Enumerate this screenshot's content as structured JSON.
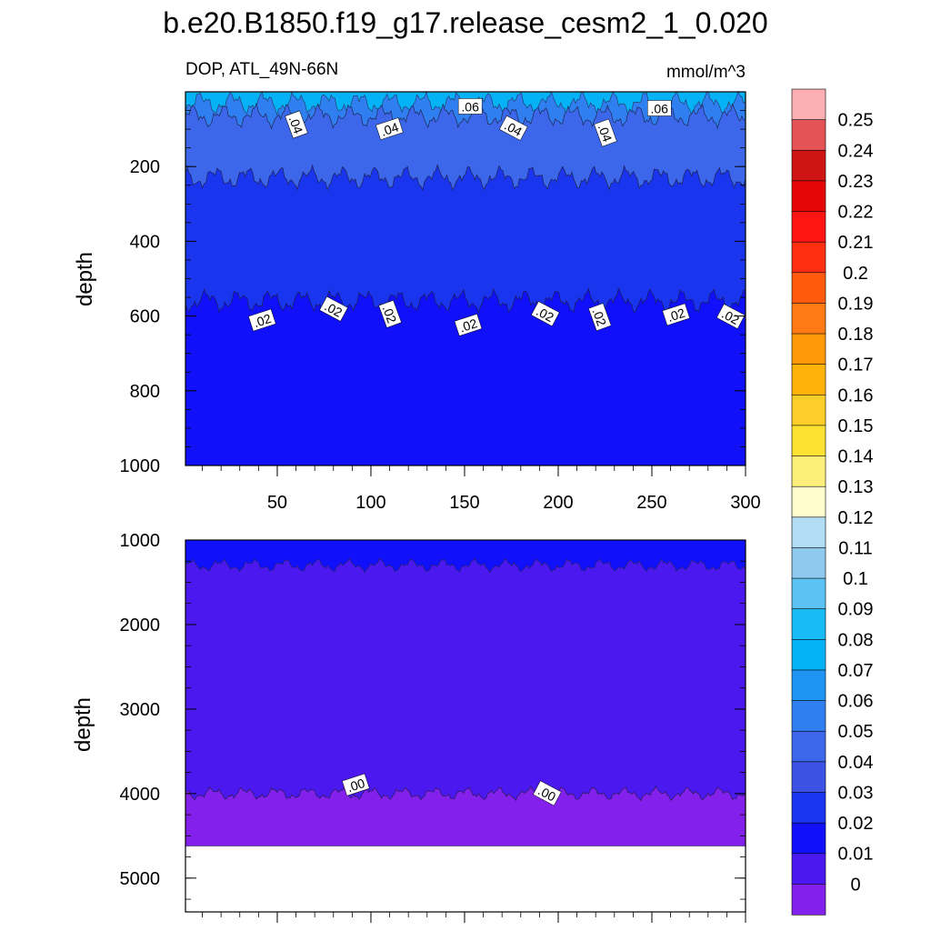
{
  "chart_data": {
    "type": "heatmap",
    "title": "b.e20.B1850.f19_g17.release_cesm2_1_0.020",
    "left_subtitle": "DOP, ATL_49N-66N",
    "right_subtitle": "mmol/m^3",
    "xlabel": "",
    "x_ticks": [
      50,
      100,
      150,
      200,
      250,
      300
    ],
    "xlim": [
      1,
      300
    ],
    "panels": [
      {
        "ylabel": "depth",
        "ylim": [
          0,
          1000
        ],
        "y_ticks": [
          200,
          400,
          600,
          800,
          1000
        ],
        "y_reversed": true,
        "bands": [
          {
            "level_below": 0.06,
            "depth_top": 0,
            "depth_bottom": 30,
            "color": "#05b2f5"
          },
          {
            "level_below": 0.05,
            "depth_top": 30,
            "depth_bottom": 65,
            "color": "#2f7ff1"
          },
          {
            "level_below": 0.04,
            "depth_top": 65,
            "depth_bottom": 230,
            "color": "#3c67ea"
          },
          {
            "level_below": 0.03,
            "depth_top": 230,
            "depth_bottom": 560,
            "color": "#1a35ee"
          },
          {
            "level_below": 0.02,
            "depth_top": 560,
            "depth_bottom": 1000,
            "color": "#1010fa"
          }
        ],
        "contour_labels": [
          {
            "text": ".06",
            "x": 153,
            "depth": 40
          },
          {
            "text": ".06",
            "x": 254,
            "depth": 45
          },
          {
            "text": ".04",
            "x": 60,
            "depth": 88
          },
          {
            "text": ".04",
            "x": 110,
            "depth": 100
          },
          {
            "text": ".04",
            "x": 176,
            "depth": 98
          },
          {
            "text": ".04",
            "x": 225,
            "depth": 110
          },
          {
            "text": ".02",
            "x": 42,
            "depth": 612
          },
          {
            "text": ".02",
            "x": 80,
            "depth": 582
          },
          {
            "text": ".02",
            "x": 110,
            "depth": 595
          },
          {
            "text": ".02",
            "x": 152,
            "depth": 625
          },
          {
            "text": ".02",
            "x": 193,
            "depth": 595
          },
          {
            "text": ".02",
            "x": 222,
            "depth": 603
          },
          {
            "text": ".02",
            "x": 263,
            "depth": 597
          },
          {
            "text": ".02",
            "x": 292,
            "depth": 602
          }
        ]
      },
      {
        "ylabel": "depth",
        "ylim": [
          1000,
          5400
        ],
        "y_ticks": [
          1000,
          2000,
          3000,
          4000,
          5000
        ],
        "y_reversed": true,
        "seafloor_depth": 4620,
        "bands": [
          {
            "level_below": 0.01,
            "depth_top": 1000,
            "depth_bottom": 1300,
            "color": "#1010fa"
          },
          {
            "level_below": 0.0,
            "depth_top": 1300,
            "depth_bottom": 4000,
            "color": "#4b19f0"
          },
          {
            "level_below": -0.01,
            "depth_top": 4000,
            "depth_bottom": 4620,
            "color": "#8420ec"
          }
        ],
        "contour_labels": [
          {
            "text": ".00",
            "x": 92,
            "depth": 3900
          },
          {
            "text": ".00",
            "x": 194,
            "depth": 4000
          }
        ]
      }
    ],
    "colorbar": {
      "labels": [
        "0.25",
        "0.24",
        "0.23",
        "0.22",
        "0.21",
        "0.2",
        "0.19",
        "0.18",
        "0.17",
        "0.16",
        "0.15",
        "0.14",
        "0.13",
        "0.12",
        "0.11",
        "0.1",
        "0.09",
        "0.08",
        "0.07",
        "0.06",
        "0.05",
        "0.04",
        "0.03",
        "0.02",
        "0.01",
        "0"
      ],
      "colors": [
        "#fcb0b2",
        "#e45456",
        "#cf1414",
        "#e50707",
        "#ff1414",
        "#ff2e10",
        "#ff5a0e",
        "#ff7a14",
        "#ff9908",
        "#ffb308",
        "#fdcd2a",
        "#fde233",
        "#fdf07a",
        "#fffdcb",
        "#b2dcf3",
        "#8fcaee",
        "#5cc1f3",
        "#18bbf6",
        "#05b2f5",
        "#1f94f3",
        "#2f7ff1",
        "#3c67ea",
        "#3c52e5",
        "#1a35ee",
        "#1010fa",
        "#4b19f0",
        "#8420ec"
      ]
    }
  }
}
